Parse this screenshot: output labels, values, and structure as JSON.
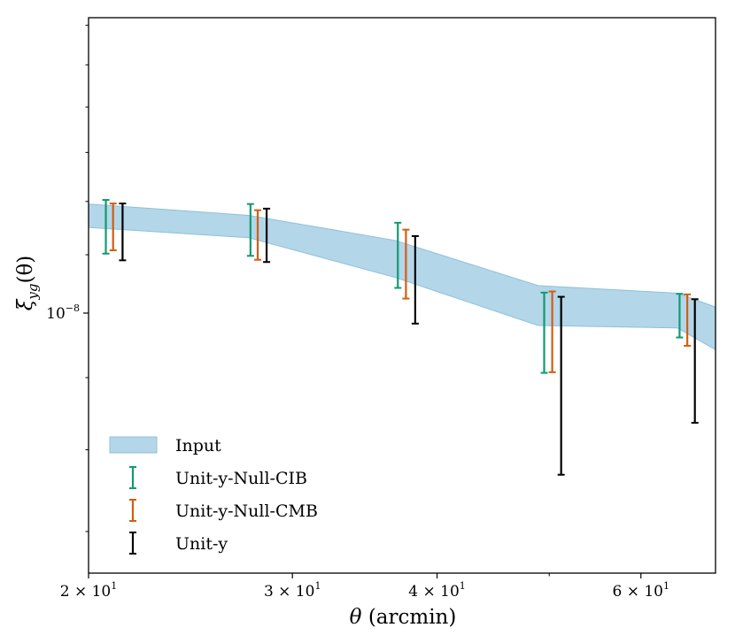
{
  "chart_data": {
    "type": "errorbar",
    "title": "",
    "xlabel_var": "θ",
    "xlabel_unit": "(arcmin)",
    "ylabel_main": "ξ",
    "ylabel_sub": "yg",
    "ylabel_arg": "(θ)",
    "xscale": "log",
    "yscale": "log",
    "xlim": [
      20.0,
      69.6
    ],
    "ylim": [
      6.54e-09,
      1.62e-08
    ],
    "x_ticks": [
      {
        "value": 20,
        "mantissa": "2",
        "base": "10",
        "exp": "1"
      },
      {
        "value": 30,
        "mantissa": "3",
        "base": "10",
        "exp": "1"
      },
      {
        "value": 40,
        "mantissa": "4",
        "base": "10",
        "exp": "1"
      },
      {
        "value": 60,
        "mantissa": "6",
        "base": "10",
        "exp": "1"
      }
    ],
    "x_minor_ticks": [
      50
    ],
    "y_ticks": [
      {
        "value": 1e-08,
        "base": "10",
        "exp": "−8"
      }
    ],
    "y_minor_ticks": [
      7e-09,
      8e-09,
      9e-09,
      1.1e-08,
      1.2e-08,
      1.3e-08,
      1.4e-08,
      1.5e-08,
      1.6e-08
    ],
    "band": {
      "name": "Input",
      "color": "#a6cfe5",
      "x": [
        20.0,
        27.5,
        36.8,
        48.9,
        64.5,
        69.6
      ],
      "upper": [
        1.195e-08,
        1.173e-08,
        1.126e-08,
        1.046e-08,
        1.033e-08,
        1.01e-08
      ],
      "lower": [
        1.15e-08,
        1.131e-08,
        1.06e-08,
        9.8e-09,
        9.76e-09,
        9.42e-09
      ]
    },
    "series": [
      {
        "name": "Unit-y-Null-CIB",
        "color": "#119a72",
        "x": [
          20.7,
          27.6,
          37.0,
          49.5,
          64.8
        ],
        "upper": [
          1.203e-08,
          1.195e-08,
          1.159e-08,
          1.034e-08,
          1.032e-08
        ],
        "lower": [
          1.102e-08,
          1.098e-08,
          1.042e-08,
          9.07e-09,
          9.61e-09
        ]
      },
      {
        "name": "Unit-y-Null-CMB",
        "color": "#d05f12",
        "x": [
          21.0,
          28.0,
          37.6,
          50.3,
          65.8
        ],
        "upper": [
          1.196e-08,
          1.183e-08,
          1.146e-08,
          1.036e-08,
          1.031e-08
        ],
        "lower": [
          1.108e-08,
          1.091e-08,
          1.024e-08,
          9.08e-09,
          9.48e-09
        ]
      },
      {
        "name": "Unit-y",
        "color": "#000000",
        "x": [
          21.4,
          28.5,
          38.3,
          51.2,
          66.8
        ],
        "upper": [
          1.196e-08,
          1.186e-08,
          1.134e-08,
          1.027e-08,
          1.023e-08
        ],
        "lower": [
          1.09e-08,
          1.087e-08,
          9.83e-09,
          7.68e-09,
          8.36e-09
        ]
      }
    ],
    "legend": {
      "position": "lower-left",
      "entries": [
        "Input",
        "Unit-y-Null-CIB",
        "Unit-y-Null-CMB",
        "Unit-y"
      ]
    }
  }
}
